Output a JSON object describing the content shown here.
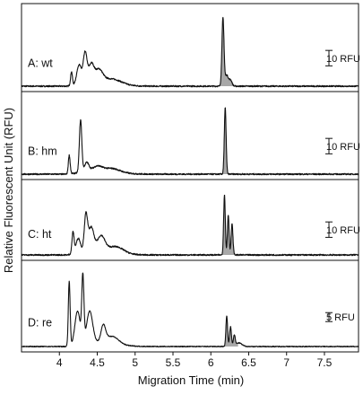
{
  "chart_data": {
    "type": "line",
    "xlabel": "Migration Time (min)",
    "ylabel": "Relative Fluorescent Unit (RFU)",
    "xlim": [
      3.5,
      7.95
    ],
    "x_ticks": [
      "4",
      "4.5",
      "5",
      "5.5",
      "6",
      "6.5",
      "7",
      "7.5"
    ],
    "x_tick_values": [
      4,
      4.5,
      5,
      5.5,
      6,
      6.5,
      7,
      7.5
    ],
    "shaded_region": [
      6.12,
      6.36
    ],
    "panels": [
      {
        "label": "A: wt",
        "scale_label": "10 RFU",
        "scale_rfu": 10,
        "baseline_rfu": 1.5,
        "peaks": [
          {
            "x": 4.16,
            "h": 9.0,
            "w": 0.012
          },
          {
            "x": 4.26,
            "h": 13.0,
            "w": 0.03
          },
          {
            "x": 4.34,
            "h": 20.0,
            "w": 0.025
          },
          {
            "x": 4.42,
            "h": 12.0,
            "w": 0.035
          },
          {
            "x": 4.52,
            "h": 8.0,
            "w": 0.05
          },
          {
            "x": 4.7,
            "h": 3.0,
            "w": 0.12
          },
          {
            "x": 6.16,
            "h": 44.0,
            "w": 0.014
          },
          {
            "x": 6.21,
            "h": 7.0,
            "w": 0.02
          },
          {
            "x": 6.26,
            "h": 4.0,
            "w": 0.02
          }
        ]
      },
      {
        "label": "B: hm",
        "scale_label": "10 RFU",
        "scale_rfu": 10,
        "baseline_rfu": 1.5,
        "peaks": [
          {
            "x": 4.13,
            "h": 12.0,
            "w": 0.012
          },
          {
            "x": 4.28,
            "h": 34.0,
            "w": 0.016
          },
          {
            "x": 4.36,
            "h": 6.0,
            "w": 0.03
          },
          {
            "x": 4.5,
            "h": 3.0,
            "w": 0.06
          },
          {
            "x": 4.7,
            "h": 2.0,
            "w": 0.1
          },
          {
            "x": 6.19,
            "h": 43.0,
            "w": 0.012
          }
        ]
      },
      {
        "label": "C: ht",
        "scale_label": "10 RFU",
        "scale_rfu": 10,
        "baseline_rfu": 1.5,
        "peaks": [
          {
            "x": 4.18,
            "h": 14.0,
            "w": 0.014
          },
          {
            "x": 4.25,
            "h": 10.0,
            "w": 0.03
          },
          {
            "x": 4.35,
            "h": 24.0,
            "w": 0.022
          },
          {
            "x": 4.42,
            "h": 16.0,
            "w": 0.035
          },
          {
            "x": 4.55,
            "h": 10.0,
            "w": 0.05
          },
          {
            "x": 4.75,
            "h": 4.0,
            "w": 0.1
          },
          {
            "x": 6.18,
            "h": 39.0,
            "w": 0.011
          },
          {
            "x": 6.23,
            "h": 26.0,
            "w": 0.011
          },
          {
            "x": 6.28,
            "h": 20.0,
            "w": 0.012
          }
        ]
      },
      {
        "label": "D: re",
        "scale_label": "5 RFU",
        "scale_rfu": 5,
        "baseline_rfu": 0.8,
        "peaks": [
          {
            "x": 4.13,
            "h": 36.0,
            "w": 0.012
          },
          {
            "x": 4.24,
            "h": 19.0,
            "w": 0.035
          },
          {
            "x": 4.31,
            "h": 36.0,
            "w": 0.014
          },
          {
            "x": 4.4,
            "h": 18.0,
            "w": 0.04
          },
          {
            "x": 4.58,
            "h": 9.0,
            "w": 0.03
          },
          {
            "x": 4.7,
            "h": 4.0,
            "w": 0.08
          },
          {
            "x": 6.21,
            "h": 17.0,
            "w": 0.011
          },
          {
            "x": 6.26,
            "h": 11.0,
            "w": 0.012
          },
          {
            "x": 6.31,
            "h": 6.0,
            "w": 0.012
          },
          {
            "x": 6.37,
            "h": 2.0,
            "w": 0.04
          }
        ]
      }
    ]
  }
}
